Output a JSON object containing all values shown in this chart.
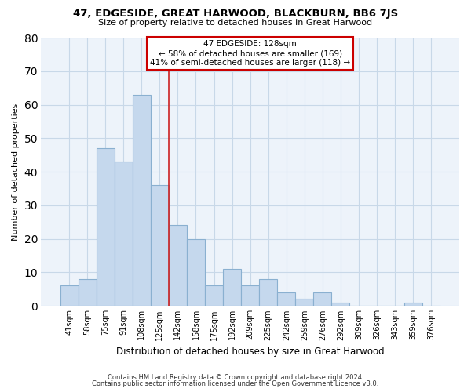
{
  "title": "47, EDGESIDE, GREAT HARWOOD, BLACKBURN, BB6 7JS",
  "subtitle": "Size of property relative to detached houses in Great Harwood",
  "xlabel": "Distribution of detached houses by size in Great Harwood",
  "ylabel": "Number of detached properties",
  "footer_line1": "Contains HM Land Registry data © Crown copyright and database right 2024.",
  "footer_line2": "Contains public sector information licensed under the Open Government Licence v3.0.",
  "annotation_line1": "47 EDGESIDE: 128sqm",
  "annotation_line2": "← 58% of detached houses are smaller (169)",
  "annotation_line3": "41% of semi-detached houses are larger (118) →",
  "bar_labels": [
    "41sqm",
    "58sqm",
    "75sqm",
    "91sqm",
    "108sqm",
    "125sqm",
    "142sqm",
    "158sqm",
    "175sqm",
    "192sqm",
    "209sqm",
    "225sqm",
    "242sqm",
    "259sqm",
    "276sqm",
    "292sqm",
    "309sqm",
    "326sqm",
    "343sqm",
    "359sqm",
    "376sqm"
  ],
  "bar_values": [
    6,
    8,
    47,
    43,
    63,
    36,
    24,
    20,
    6,
    11,
    6,
    8,
    4,
    2,
    4,
    1,
    0,
    0,
    0,
    1,
    0
  ],
  "bar_color": "#c5d8ed",
  "bar_edge_color": "#8ab0d0",
  "vline_color": "#cc2222",
  "ylim": [
    0,
    80
  ],
  "yticks": [
    0,
    10,
    20,
    30,
    40,
    50,
    60,
    70,
    80
  ],
  "annotation_box_edge_color": "#cc0000",
  "plot_bg_color": "#edf3fa",
  "fig_bg_color": "#ffffff",
  "grid_color": "#c8d8e8"
}
